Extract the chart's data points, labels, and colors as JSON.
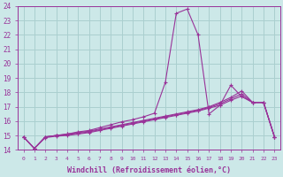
{
  "xlabel": "Windchill (Refroidissement éolien,°C)",
  "background_color": "#cce8e8",
  "grid_color": "#aacfcf",
  "line_color": "#993399",
  "spine_color": "#993399",
  "xlim": [
    -0.5,
    23.5
  ],
  "ylim": [
    14,
    24
  ],
  "yticks": [
    14,
    15,
    16,
    17,
    18,
    19,
    20,
    21,
    22,
    23,
    24
  ],
  "xticks": [
    0,
    1,
    2,
    3,
    4,
    5,
    6,
    7,
    8,
    9,
    10,
    11,
    12,
    13,
    14,
    15,
    16,
    17,
    18,
    19,
    20,
    21,
    22,
    23
  ],
  "curve1_x": [
    0,
    1,
    2,
    3,
    4,
    5,
    6,
    7,
    8,
    9,
    10,
    11,
    12,
    13,
    14,
    15,
    16,
    17,
    18,
    19,
    20,
    21,
    22,
    23
  ],
  "curve1_y": [
    14.9,
    14.1,
    14.9,
    15.0,
    15.1,
    15.25,
    15.35,
    15.55,
    15.75,
    15.95,
    16.1,
    16.3,
    16.55,
    18.7,
    23.5,
    23.8,
    22.0,
    16.5,
    17.1,
    18.5,
    17.7,
    17.3,
    17.3,
    14.9
  ],
  "curve2_x": [
    0,
    1,
    2,
    3,
    4,
    5,
    6,
    7,
    8,
    9,
    10,
    11,
    12,
    13,
    14,
    15,
    16,
    17,
    18,
    19,
    20,
    21,
    22,
    23
  ],
  "curve2_y": [
    14.9,
    14.1,
    14.9,
    15.0,
    15.1,
    15.2,
    15.3,
    15.45,
    15.6,
    15.75,
    15.9,
    16.05,
    16.2,
    16.35,
    16.5,
    16.65,
    16.8,
    17.0,
    17.3,
    17.65,
    18.1,
    17.3,
    17.3,
    14.9
  ],
  "curve3_x": [
    0,
    1,
    2,
    3,
    4,
    5,
    6,
    7,
    8,
    9,
    10,
    11,
    12,
    13,
    14,
    15,
    16,
    17,
    18,
    19,
    20,
    21,
    22,
    23
  ],
  "curve3_y": [
    14.9,
    14.1,
    14.9,
    15.0,
    15.05,
    15.15,
    15.25,
    15.4,
    15.55,
    15.7,
    15.85,
    16.0,
    16.15,
    16.3,
    16.45,
    16.6,
    16.75,
    16.95,
    17.2,
    17.55,
    17.9,
    17.3,
    17.3,
    14.9
  ],
  "curve4_x": [
    0,
    1,
    2,
    3,
    4,
    5,
    6,
    7,
    8,
    9,
    10,
    11,
    12,
    13,
    14,
    15,
    16,
    17,
    18,
    19,
    20,
    21,
    22,
    23
  ],
  "curve4_y": [
    14.9,
    14.1,
    14.85,
    14.95,
    15.0,
    15.1,
    15.2,
    15.35,
    15.5,
    15.65,
    15.8,
    15.95,
    16.1,
    16.25,
    16.4,
    16.55,
    16.7,
    16.9,
    17.1,
    17.45,
    17.75,
    17.3,
    17.3,
    14.9
  ]
}
